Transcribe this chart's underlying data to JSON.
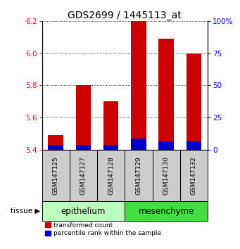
{
  "title": "GDS2699 / 1445113_at",
  "samples": [
    "GSM147125",
    "GSM147127",
    "GSM147128",
    "GSM147129",
    "GSM147130",
    "GSM147132"
  ],
  "red_values": [
    5.49,
    5.8,
    5.7,
    6.2,
    6.09,
    6.0
  ],
  "blue_values": [
    5.43,
    5.43,
    5.43,
    5.47,
    5.45,
    5.45
  ],
  "baseline": 5.4,
  "ylim": [
    5.4,
    6.2
  ],
  "yticks_left": [
    5.4,
    5.6,
    5.8,
    6.0,
    6.2
  ],
  "yticks_right": [
    0,
    25,
    50,
    75,
    100
  ],
  "ytick_labels_right": [
    "0",
    "25",
    "50",
    "75",
    "100%"
  ],
  "tissue_groups": [
    {
      "label": "epithelium",
      "start": 0,
      "end": 3,
      "color": "#bbffbb"
    },
    {
      "label": "mesenchyme",
      "start": 3,
      "end": 6,
      "color": "#44dd44"
    }
  ],
  "tissue_label": "tissue",
  "bar_width": 0.55,
  "red_color": "#cc0000",
  "blue_color": "#0000cc",
  "legend_red": "transformed count",
  "legend_blue": "percentile rank within the sample",
  "label_area_color": "#cccccc",
  "title_fontsize": 10,
  "tick_fontsize": 7.5,
  "sample_label_fontsize": 6.5,
  "tissue_label_fontsize": 8.5,
  "grid_color": "#000000"
}
